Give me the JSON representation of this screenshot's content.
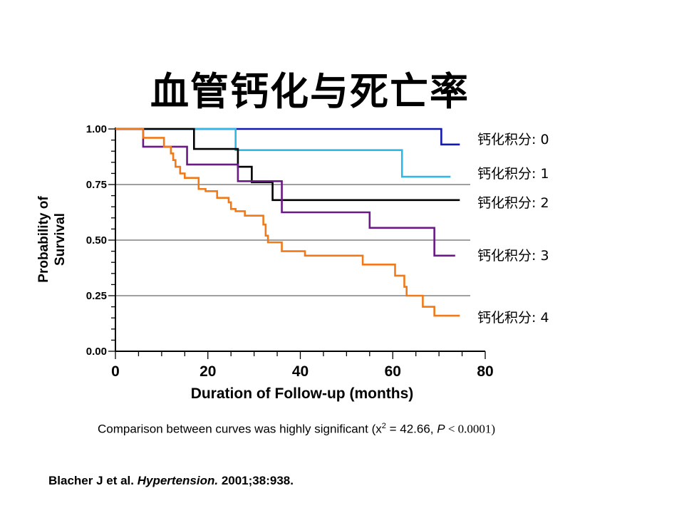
{
  "title": "血管钙化与死亡率",
  "chart_data": {
    "type": "line",
    "step": true,
    "xlabel": "Duration of Follow-up (months)",
    "ylabel_line1": "Probability of",
    "ylabel_line2": "Survival",
    "xlim": [
      0,
      80
    ],
    "ylim": [
      0,
      1
    ],
    "x_ticks": [
      0,
      20,
      40,
      60,
      80
    ],
    "y_ticks": [
      0.0,
      0.25,
      0.5,
      0.75,
      1.0
    ],
    "y_tick_labels": [
      "0.00",
      "0.25",
      "0.50",
      "0.75",
      "1.00"
    ],
    "grid": "horizontal at 0.25, 0.50, 0.75",
    "series": [
      {
        "name": "钙化积分: 0",
        "color": "#1219b0",
        "x": [
          0,
          70.5,
          74.5
        ],
        "y": [
          1.0,
          0.93,
          0.93
        ]
      },
      {
        "name": "钙化积分: 1",
        "color": "#2fb7e6",
        "x": [
          0,
          26.0,
          62.0,
          72.5
        ],
        "y": [
          1.0,
          0.905,
          0.785,
          0.785
        ]
      },
      {
        "name": "钙化积分: 2",
        "color": "#000000",
        "x": [
          0,
          17.0,
          26.5,
          29.5,
          34.0,
          74.5
        ],
        "y": [
          1.0,
          0.91,
          0.83,
          0.76,
          0.68,
          0.68
        ]
      },
      {
        "name": "钙化积分: 3",
        "color": "#6a1a86",
        "x": [
          0,
          6.0,
          15.5,
          26.5,
          36.0,
          55.0,
          69.0,
          73.5
        ],
        "y": [
          1.0,
          0.92,
          0.84,
          0.765,
          0.625,
          0.555,
          0.43,
          0.43
        ]
      },
      {
        "name": "钙化积分: 4",
        "color": "#f07a1a",
        "x": [
          0,
          6.0,
          10.5,
          12.0,
          12.5,
          13.0,
          14.0,
          15.0,
          18.0,
          19.5,
          22.0,
          24.5,
          25.0,
          26.0,
          28.0,
          32.0,
          32.5,
          33.0,
          36.0,
          41.0,
          53.5,
          60.5,
          62.5,
          63.0,
          66.5,
          69.0,
          74.5
        ],
        "y": [
          1.0,
          0.96,
          0.92,
          0.89,
          0.86,
          0.83,
          0.8,
          0.78,
          0.73,
          0.72,
          0.69,
          0.67,
          0.64,
          0.63,
          0.61,
          0.57,
          0.52,
          0.49,
          0.45,
          0.43,
          0.39,
          0.34,
          0.29,
          0.25,
          0.2,
          0.16,
          0.16
        ]
      }
    ]
  },
  "note": {
    "prefix": "Comparison between curves was highly significant (x",
    "sup": "2",
    "mid": " = 42.66, ",
    "p": "P",
    "suffix": " < 0.0001)"
  },
  "citation": {
    "authors": "Blacher J et al. ",
    "journal": "Hypertension.",
    "ref": " 2001;38:938."
  }
}
